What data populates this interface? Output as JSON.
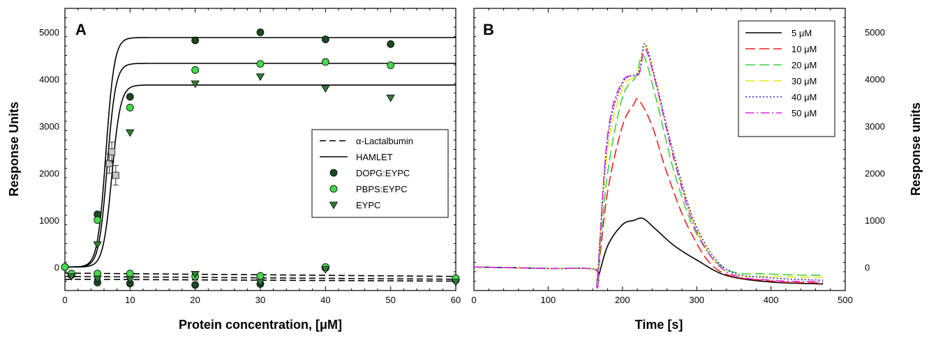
{
  "chart_data": [
    {
      "type": "scatter",
      "panel_label": "A",
      "xlabel": "Protein concentration, [μM]",
      "ylabel": "Response Units",
      "xlim": [
        0,
        60
      ],
      "ylim": [
        -500,
        5500
      ],
      "x_ticks": [
        0,
        10,
        20,
        30,
        40,
        50,
        60
      ],
      "y_ticks": [
        0,
        1000,
        2000,
        3000,
        4000,
        5000
      ],
      "legend_position": "center-right",
      "legend": [
        {
          "label": "α-Lactalbumin",
          "kind": "dashed-line"
        },
        {
          "label": "HAMLET",
          "kind": "solid-line"
        },
        {
          "label": "DOPG:EYPC",
          "kind": "circle",
          "color": "#1a4a1f"
        },
        {
          "label": "PBPS:EYPC",
          "kind": "circle",
          "color": "#44d94a"
        },
        {
          "label": "EYPC",
          "kind": "triangle-down",
          "color": "#2e7d35"
        }
      ],
      "hamlet_fits": [
        {
          "target": "DOPG:EYPC",
          "max": 4880,
          "half": 6.3,
          "k": 1.55
        },
        {
          "target": "PBPS:EYPC",
          "max": 4330,
          "half": 6.5,
          "k": 1.55
        },
        {
          "target": "EYPC",
          "max": 3870,
          "half": 7.2,
          "k": 1.5
        }
      ],
      "lactalbumin_fits": [
        {
          "y0": -130,
          "y60": -200
        },
        {
          "y0": -200,
          "y60": -260
        },
        {
          "y0": -260,
          "y60": -300
        }
      ],
      "series": [
        {
          "name": "DOPG:EYPC",
          "marker": "circle",
          "color": "#1a4a1f",
          "points": [
            [
              0,
              0
            ],
            [
              5,
              1120
            ],
            [
              10,
              3620
            ],
            [
              20,
              4820
            ],
            [
              30,
              4990
            ],
            [
              40,
              4840
            ],
            [
              50,
              4740
            ],
            [
              1,
              -170
            ],
            [
              5,
              -330
            ],
            [
              10,
              -350
            ],
            [
              20,
              -380
            ],
            [
              30,
              -360
            ],
            [
              40,
              -20
            ],
            [
              60,
              -280
            ]
          ]
        },
        {
          "name": "PBPS:EYPC",
          "marker": "circle",
          "color": "#44d94a",
          "points": [
            [
              0,
              0
            ],
            [
              5,
              1000
            ],
            [
              10,
              3390
            ],
            [
              20,
              4190
            ],
            [
              30,
              4320
            ],
            [
              40,
              4360
            ],
            [
              50,
              4290
            ],
            [
              1,
              -140
            ],
            [
              5,
              -140
            ],
            [
              10,
              -140
            ],
            [
              20,
              -200
            ],
            [
              30,
              -190
            ],
            [
              40,
              0
            ],
            [
              60,
              -240
            ]
          ]
        },
        {
          "name": "EYPC",
          "marker": "triangle-down",
          "color": "#2e7d35",
          "points": [
            [
              5,
              480
            ],
            [
              10,
              2860
            ],
            [
              20,
              3900
            ],
            [
              30,
              4050
            ],
            [
              40,
              3800
            ],
            [
              50,
              3600
            ],
            [
              1,
              -200
            ],
            [
              5,
              -250
            ],
            [
              10,
              -260
            ],
            [
              20,
              -150
            ],
            [
              30,
              -320
            ],
            [
              40,
              -50
            ],
            [
              60,
              -320
            ]
          ]
        },
        {
          "name": "error-squares",
          "marker": "square",
          "color": "#c8c8c8",
          "points": [
            [
              6.8,
              2200
            ],
            [
              7.2,
              2450
            ],
            [
              7.8,
              1950
            ]
          ]
        }
      ]
    },
    {
      "type": "line",
      "panel_label": "B",
      "xlabel": "Time [s]",
      "ylabel": "Response units",
      "xlim": [
        0,
        500
      ],
      "ylim": [
        -500,
        5500
      ],
      "x_ticks": [
        0,
        100,
        200,
        300,
        400,
        500
      ],
      "y_ticks": [
        0,
        1000,
        2000,
        3000,
        4000,
        5000
      ],
      "legend_position": "top-right",
      "series": [
        {
          "name": "5 μM",
          "color": "#000000",
          "dash": "solid",
          "x": [
            0,
            100,
            163,
            166,
            180,
            200,
            215,
            228,
            245,
            270,
            300,
            340,
            400,
            470
          ],
          "y": [
            0,
            -30,
            -50,
            -280,
            450,
            900,
            990,
            1030,
            800,
            450,
            150,
            -180,
            -320,
            -360
          ]
        },
        {
          "name": "10 μM",
          "color": "#e8201a",
          "dash": "long",
          "x": [
            0,
            100,
            163,
            166,
            180,
            200,
            215,
            222,
            240,
            260,
            290,
            330,
            400,
            470
          ],
          "y": [
            0,
            -30,
            -50,
            -280,
            1600,
            3000,
            3450,
            3550,
            3000,
            2000,
            800,
            -80,
            -300,
            -340
          ]
        },
        {
          "name": "20 μM",
          "color": "#3cd13c",
          "dash": "long",
          "x": [
            0,
            100,
            163,
            166,
            180,
            200,
            218,
            228,
            245,
            270,
            300,
            340,
            400,
            470
          ],
          "y": [
            0,
            -30,
            -50,
            -280,
            2000,
            3600,
            4050,
            4500,
            3600,
            2000,
            700,
            -50,
            -150,
            -180
          ]
        },
        {
          "name": "30 μM",
          "color": "#e8e81a",
          "dash": "long",
          "x": [
            0,
            100,
            163,
            166,
            180,
            200,
            220,
            230,
            245,
            270,
            300,
            340,
            400,
            470
          ],
          "y": [
            0,
            -30,
            -50,
            -280,
            2500,
            3800,
            4100,
            4700,
            3900,
            2300,
            800,
            -100,
            -200,
            -220
          ]
        },
        {
          "name": "40 μM",
          "color": "#2020d0",
          "dash": "dot",
          "x": [
            0,
            100,
            163,
            166,
            180,
            200,
            222,
            230,
            245,
            270,
            300,
            340,
            400,
            470
          ],
          "y": [
            0,
            -30,
            -50,
            -280,
            2700,
            3900,
            4150,
            4750,
            3950,
            2350,
            850,
            -50,
            -230,
            -280
          ]
        },
        {
          "name": "50 μM",
          "color": "#e020e0",
          "dash": "dashdot",
          "x": [
            0,
            100,
            163,
            166,
            180,
            200,
            222,
            230,
            245,
            270,
            300,
            340,
            400,
            470
          ],
          "y": [
            0,
            -30,
            -50,
            -280,
            2800,
            3950,
            4100,
            4650,
            3900,
            2250,
            750,
            -100,
            -280,
            -310
          ]
        }
      ]
    }
  ]
}
